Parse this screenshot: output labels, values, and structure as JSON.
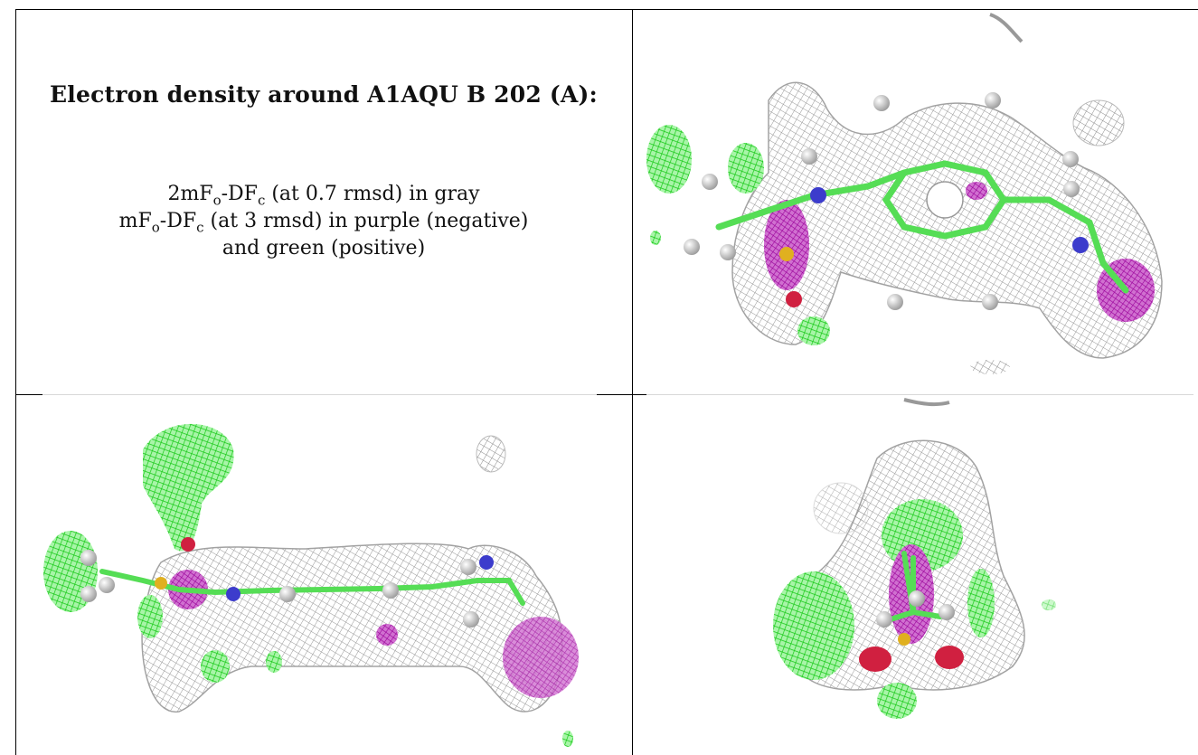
{
  "header": {
    "title": "Electron density around A1AQU B 202 (A):"
  },
  "legend": {
    "line1": {
      "pre": "2mF",
      "sub1": "o",
      "mid": "-DF",
      "sub2": "c",
      "post": " (at 0.7 rmsd) in gray"
    },
    "line2": {
      "pre": "mF",
      "sub1": "o",
      "mid": "-DF",
      "sub2": "c",
      "post": " (at 3 rmsd) in purple (negative)"
    },
    "line3": "and green (positive)"
  },
  "colors": {
    "mesh_gray": "#8c8c8c",
    "density_positive": "#22e022",
    "density_negative": "#b000b0",
    "carbon": "#55dd55",
    "nitrogen": "#3c3ccc",
    "oxygen": "#d02040",
    "sulfur": "#e0b020",
    "hydrogen": "#e6e6e6"
  },
  "panels": [
    {
      "id": "view-top-right",
      "view": "ligand front view"
    },
    {
      "id": "view-bottom-left",
      "view": "ligand side view"
    },
    {
      "id": "view-bottom-right",
      "view": "ligand end-on view"
    }
  ]
}
